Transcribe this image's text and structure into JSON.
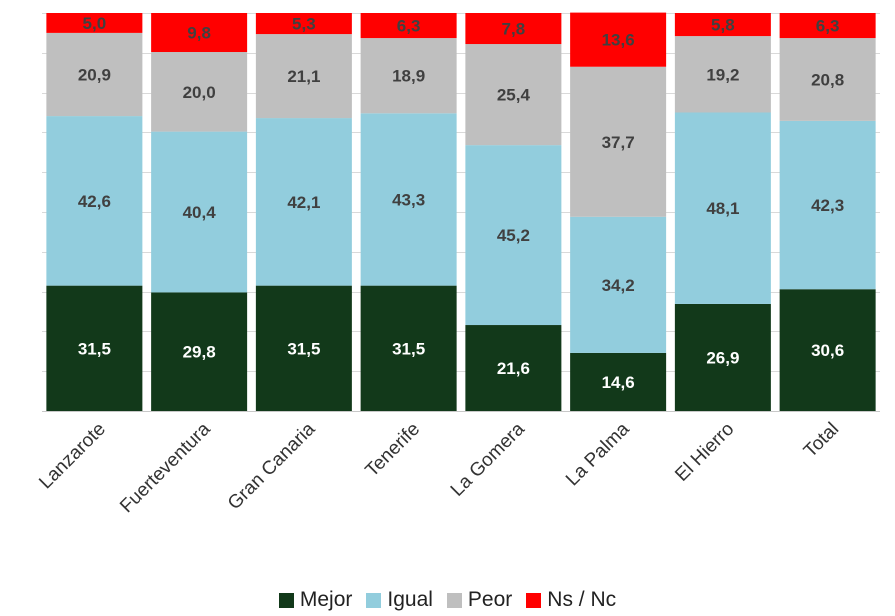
{
  "chart_data": {
    "type": "bar",
    "stacked": true,
    "percent": true,
    "categories": [
      "Lanzarote",
      "Fuerteventura",
      "Gran Canaria",
      "Tenerife",
      "La Gomera",
      "La Palma",
      "El Hierro",
      "Total"
    ],
    "series": [
      {
        "name": "Mejor",
        "color": "#12391a",
        "values": [
          31.5,
          29.8,
          31.5,
          31.5,
          21.6,
          14.6,
          26.9,
          30.6
        ],
        "labels": [
          "31,5",
          "29,8",
          "31,5",
          "31,5",
          "21,6",
          "14,6",
          "26,9",
          "30,6"
        ],
        "label_color": "#ffffff"
      },
      {
        "name": "Igual",
        "color": "#92cddd",
        "values": [
          42.6,
          40.4,
          42.1,
          43.3,
          45.2,
          34.2,
          48.1,
          42.3
        ],
        "labels": [
          "42,6",
          "40,4",
          "42,1",
          "43,3",
          "45,2",
          "34,2",
          "48,1",
          "42,3"
        ],
        "label_color": "#404040"
      },
      {
        "name": "Peor",
        "color": "#bfbfbf",
        "values": [
          20.9,
          20.0,
          21.1,
          18.9,
          25.4,
          37.7,
          19.2,
          20.8
        ],
        "labels": [
          "20,9",
          "20,0",
          "21,1",
          "18,9",
          "25,4",
          "37,7",
          "19,2",
          "20,8"
        ],
        "label_color": "#404040"
      },
      {
        "name": "Ns / Nc",
        "color": "#ff0000",
        "values": [
          5.0,
          9.8,
          5.3,
          6.3,
          7.8,
          13.6,
          5.8,
          6.3
        ],
        "labels": [
          "5,0",
          "9,8",
          "5,3",
          "6,3",
          "7,8",
          "13,6",
          "5,8",
          "6,3"
        ],
        "label_color": "#404040"
      }
    ],
    "ylim": [
      0,
      100
    ],
    "ytick_step": 10,
    "grid": true,
    "legend_position": "bottom"
  }
}
